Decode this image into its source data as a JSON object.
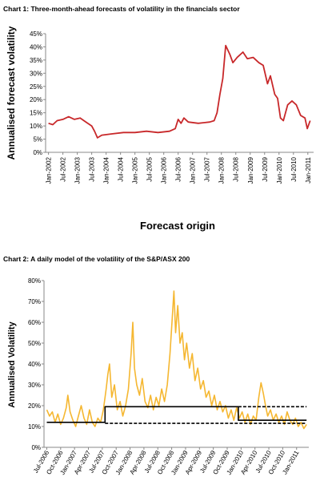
{
  "chart_data": [
    {
      "type": "line",
      "title": "Chart 1: Three-month-ahead forecasts of volatility in the financials sector",
      "ylabel": "Annualised forecast volatility",
      "xlabel": "Forecast origin",
      "color": "#c8282a",
      "x": [
        2002.0,
        2002.15,
        2002.3,
        2002.5,
        2002.7,
        2002.9,
        2003.1,
        2003.3,
        2003.5,
        2003.6,
        2003.7,
        2003.85,
        2004.2,
        2004.6,
        2005.0,
        2005.4,
        2005.8,
        2006.2,
        2006.4,
        2006.5,
        2006.6,
        2006.7,
        2006.85,
        2007.2,
        2007.6,
        2007.75,
        2007.85,
        2007.95,
        2008.05,
        2008.15,
        2008.3,
        2008.4,
        2008.55,
        2008.75,
        2008.9,
        2009.1,
        2009.3,
        2009.45,
        2009.6,
        2009.7,
        2009.85,
        2009.95,
        2010.05,
        2010.15,
        2010.3,
        2010.45,
        2010.6,
        2010.75,
        2010.9,
        2010.98,
        2011.08
      ],
      "values": [
        11,
        10.5,
        12,
        12.5,
        13.5,
        12.5,
        13,
        11.5,
        10,
        8,
        5.5,
        6.5,
        7,
        7.5,
        7.5,
        8,
        7.5,
        8,
        9,
        12.5,
        11,
        13,
        11.5,
        11,
        11.5,
        12,
        15,
        22,
        28,
        40.5,
        37,
        34,
        36,
        38,
        35.5,
        36,
        34,
        33,
        26,
        29,
        22,
        20.5,
        13,
        12,
        18,
        19.5,
        18,
        14,
        13,
        9,
        12
      ],
      "xlim": [
        2001.9,
        2011.2
      ],
      "xticks": [
        {
          "value": 2002,
          "label": "Jan-2002"
        },
        {
          "value": 2002.5,
          "label": "Jul-2002"
        },
        {
          "value": 2003,
          "label": "Jan-2003"
        },
        {
          "value": 2003.5,
          "label": "Jul-2003"
        },
        {
          "value": 2004,
          "label": "Jan-2004"
        },
        {
          "value": 2004.5,
          "label": "Jul-2004"
        },
        {
          "value": 2005,
          "label": "Jan-2005"
        },
        {
          "value": 2005.5,
          "label": "Jul-2005"
        },
        {
          "value": 2006,
          "label": "Jan-2006"
        },
        {
          "value": 2006.5,
          "label": "Jul-2006"
        },
        {
          "value": 2007,
          "label": "Jan-2007"
        },
        {
          "value": 2007.5,
          "label": "Jul-2007"
        },
        {
          "value": 2008,
          "label": "Jan-2008"
        },
        {
          "value": 2008.5,
          "label": "Jul-2008"
        },
        {
          "value": 2009,
          "label": "Jan-2009"
        },
        {
          "value": 2009.5,
          "label": "Jul-2009"
        },
        {
          "value": 2010,
          "label": "Jan-2010"
        },
        {
          "value": 2010.5,
          "label": "Jul-2010"
        },
        {
          "value": 2011,
          "label": "Jan-2011"
        }
      ],
      "ylim": [
        0,
        45
      ],
      "yticks": [
        {
          "value": 0,
          "label": "0%"
        },
        {
          "value": 5,
          "label": "5%"
        },
        {
          "value": 10,
          "label": "10%"
        },
        {
          "value": 15,
          "label": "15%"
        },
        {
          "value": 20,
          "label": "20%"
        },
        {
          "value": 25,
          "label": "25%"
        },
        {
          "value": 30,
          "label": "30%"
        },
        {
          "value": 35,
          "label": "35%"
        },
        {
          "value": 40,
          "label": "40%"
        },
        {
          "value": 45,
          "label": "45%"
        }
      ]
    },
    {
      "type": "line",
      "title": "Chart 2: A daily model of the volatility of the S&P/ASX 200",
      "ylabel": "Annualised Volatility",
      "series": [
        {
          "color": "#f5b731",
          "x": [
            2006.5,
            2006.55,
            2006.6,
            2006.65,
            2006.7,
            2006.75,
            2006.8,
            2006.85,
            2006.88,
            2006.92,
            2006.97,
            2007.02,
            2007.07,
            2007.12,
            2007.17,
            2007.22,
            2007.27,
            2007.32,
            2007.37,
            2007.42,
            2007.47,
            2007.52,
            2007.57,
            2007.6,
            2007.63,
            2007.67,
            2007.72,
            2007.77,
            2007.82,
            2007.87,
            2007.92,
            2007.97,
            2008.02,
            2008.05,
            2008.08,
            2008.12,
            2008.17,
            2008.22,
            2008.27,
            2008.32,
            2008.37,
            2008.42,
            2008.47,
            2008.52,
            2008.57,
            2008.62,
            2008.67,
            2008.72,
            2008.76,
            2008.79,
            2008.82,
            2008.86,
            2008.9,
            2008.94,
            2008.98,
            2009.02,
            2009.07,
            2009.12,
            2009.17,
            2009.22,
            2009.27,
            2009.32,
            2009.37,
            2009.42,
            2009.47,
            2009.52,
            2009.57,
            2009.62,
            2009.67,
            2009.72,
            2009.77,
            2009.82,
            2009.87,
            2009.92,
            2009.97,
            2010.02,
            2010.07,
            2010.12,
            2010.17,
            2010.22,
            2010.27,
            2010.32,
            2010.36,
            2010.4,
            2010.44,
            2010.48,
            2010.53,
            2010.58,
            2010.63,
            2010.68,
            2010.73,
            2010.78,
            2010.83,
            2010.88,
            2010.93,
            2010.98,
            2011.03,
            2011.08,
            2011.13,
            2011.18
          ],
          "values": [
            18,
            15,
            17,
            12,
            16,
            11,
            14,
            19,
            25,
            17,
            13,
            10,
            15,
            20,
            14,
            11,
            18,
            12,
            10,
            14,
            12,
            18,
            28,
            35,
            40,
            24,
            30,
            18,
            22,
            15,
            20,
            28,
            45,
            60,
            38,
            30,
            25,
            33,
            22,
            19,
            25,
            18,
            24,
            20,
            28,
            22,
            30,
            45,
            62,
            75,
            55,
            68,
            50,
            55,
            42,
            50,
            38,
            45,
            32,
            38,
            28,
            32,
            24,
            27,
            20,
            25,
            18,
            22,
            17,
            20,
            14,
            18,
            13,
            19,
            14,
            17,
            12,
            16,
            11,
            15,
            13,
            24,
            31,
            26,
            20,
            15,
            18,
            13,
            16,
            12,
            15,
            11,
            17,
            13,
            11,
            14,
            10,
            12,
            9,
            11
          ]
        },
        {
          "color": "#000000",
          "x": [
            2006.5,
            2007.55,
            2007.55,
            2009.95,
            2009.95,
            2011.18
          ],
          "values": [
            12,
            12,
            19.5,
            19.5,
            13,
            13
          ]
        },
        {
          "color": "#000000",
          "dash": true,
          "x": [
            2007.55,
            2011.18
          ],
          "values": [
            11.5,
            11.5
          ]
        },
        {
          "color": "#000000",
          "dash": true,
          "x": [
            2009.95,
            2011.18
          ],
          "values": [
            19.5,
            19.5
          ]
        }
      ],
      "xlim": [
        2006.45,
        2011.22
      ],
      "xticks": [
        {
          "value": 2006.5,
          "label": "Jul-2006"
        },
        {
          "value": 2006.75,
          "label": "Oct-2006"
        },
        {
          "value": 2007,
          "label": "Jan-2007"
        },
        {
          "value": 2007.25,
          "label": "Apr-2007"
        },
        {
          "value": 2007.5,
          "label": "Jul-2007"
        },
        {
          "value": 2007.75,
          "label": "Oct-2007"
        },
        {
          "value": 2008,
          "label": "Jan-2008"
        },
        {
          "value": 2008.25,
          "label": "Apr-2008"
        },
        {
          "value": 2008.5,
          "label": "Jul-2008"
        },
        {
          "value": 2008.75,
          "label": "Oct-2008"
        },
        {
          "value": 2009,
          "label": "Jan-2009"
        },
        {
          "value": 2009.25,
          "label": "Apr-2009"
        },
        {
          "value": 2009.5,
          "label": "Jul-2009"
        },
        {
          "value": 2009.75,
          "label": "Oct-2009"
        },
        {
          "value": 2010,
          "label": "Jan-2010"
        },
        {
          "value": 2010.25,
          "label": "Apr-2010"
        },
        {
          "value": 2010.5,
          "label": "Jul-2010"
        },
        {
          "value": 2010.75,
          "label": "Oct-2010"
        },
        {
          "value": 2011,
          "label": "Jan-2011"
        }
      ],
      "ylim": [
        0,
        80
      ],
      "yticks": [
        {
          "value": 0,
          "label": "0%"
        },
        {
          "value": 10,
          "label": "10%"
        },
        {
          "value": 20,
          "label": "20%"
        },
        {
          "value": 30,
          "label": "30%"
        },
        {
          "value": 40,
          "label": "40%"
        },
        {
          "value": 50,
          "label": "50%"
        },
        {
          "value": 60,
          "label": "60%"
        },
        {
          "value": 70,
          "label": "70%"
        },
        {
          "value": 80,
          "label": "80%"
        }
      ]
    }
  ]
}
